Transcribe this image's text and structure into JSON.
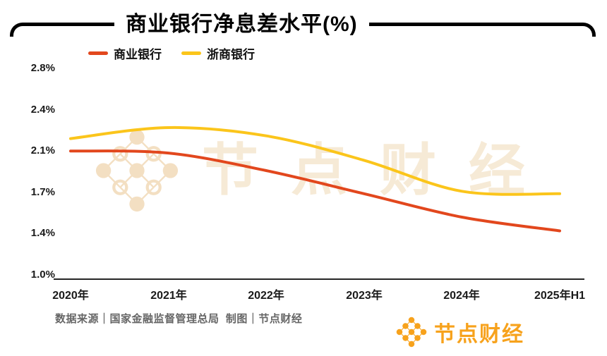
{
  "title": "商业银行净息差水平(%)",
  "legend": {
    "items": [
      {
        "label": "商业银行",
        "color": "#E2471D"
      },
      {
        "label": "浙商银行",
        "color": "#FBC51B"
      }
    ]
  },
  "watermark": {
    "text": "节点财经"
  },
  "footer": {
    "source": "数据来源｜国家金融监督管理总局  制图｜节点财经"
  },
  "brand": {
    "name": "节点财经",
    "color": "#F7A21C"
  },
  "chart_data": {
    "type": "line",
    "title": "商业银行净息差水平(%)",
    "categories": [
      "2020年",
      "2021年",
      "2022年",
      "2023年",
      "2024年",
      "2025年H1"
    ],
    "series": [
      {
        "name": "商业银行",
        "color": "#E2471D",
        "values": [
          2.1,
          2.08,
          1.91,
          1.69,
          1.52,
          1.42
        ]
      },
      {
        "name": "浙商银行",
        "color": "#FBC51B",
        "values": [
          2.19,
          2.27,
          2.21,
          2.01,
          1.71,
          1.69
        ]
      }
    ],
    "y_ticks": [
      "2.8%",
      "2.4%",
      "2.1%",
      "1.7%",
      "1.4%",
      "1.0%"
    ],
    "y_tick_values": [
      2.8,
      2.4,
      2.1,
      1.7,
      1.4,
      1.0
    ],
    "xlabel": "",
    "ylabel": "",
    "ylim": [
      1.0,
      2.8
    ],
    "grid": false,
    "legend_position": "top-left",
    "line_smoothing": "smooth"
  }
}
